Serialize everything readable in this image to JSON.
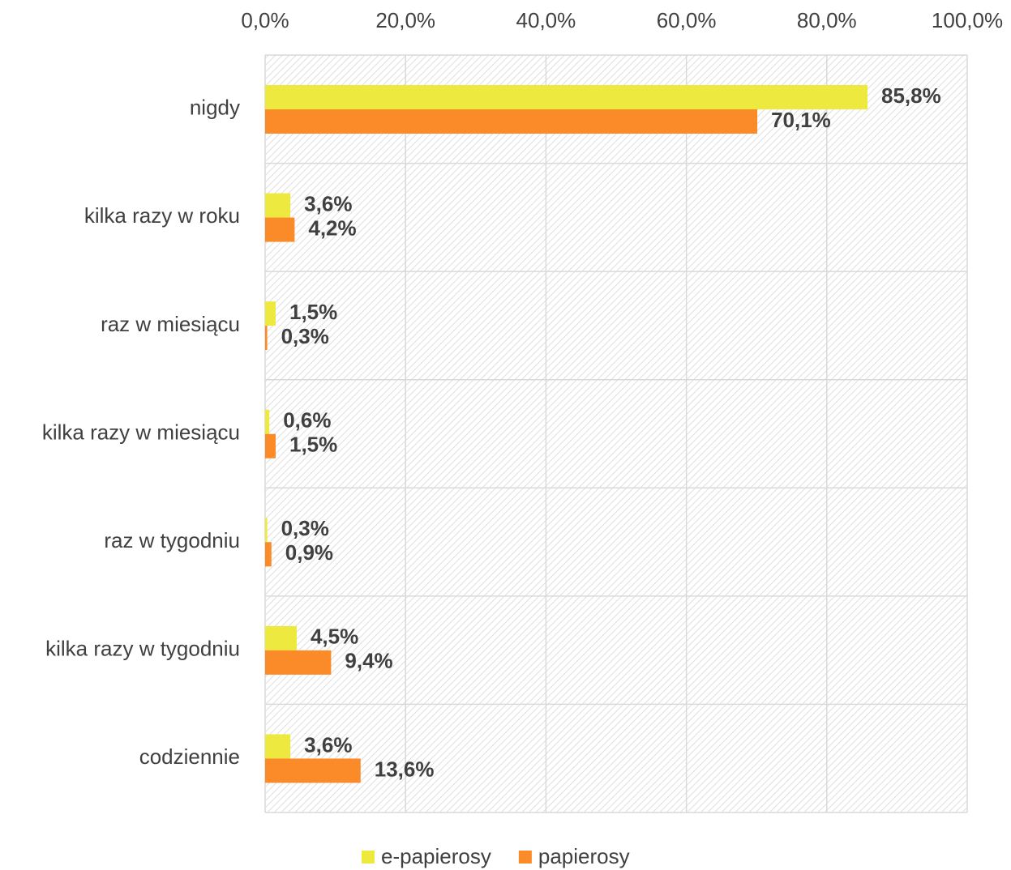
{
  "chart_data": {
    "type": "hbar",
    "categories": [
      "nigdy",
      "kilka razy w roku",
      "raz w miesiącu",
      "kilka razy w miesiącu",
      "raz w tygodniu",
      "kilka razy w tygodniu",
      "codziennie"
    ],
    "series": [
      {
        "name": "e-papierosy",
        "color": "#ede93f",
        "values": [
          85.8,
          3.6,
          1.5,
          0.6,
          0.3,
          4.5,
          3.6
        ],
        "value_labels": [
          "85,8%",
          "3,6%",
          "1,5%",
          "0,6%",
          "0,3%",
          "4,5%",
          "3,6%"
        ]
      },
      {
        "name": "papierosy",
        "color": "#fb8a28",
        "values": [
          70.1,
          4.2,
          0.3,
          1.5,
          0.9,
          9.4,
          13.6
        ],
        "value_labels": [
          "70,1%",
          "4,2%",
          "0,3%",
          "1,5%",
          "0,9%",
          "9,4%",
          "13,6%"
        ]
      }
    ],
    "xlim": [
      0,
      100
    ],
    "xticks": [
      {
        "value": 0,
        "label": "0,0%"
      },
      {
        "value": 20,
        "label": "20,0%"
      },
      {
        "value": 40,
        "label": "40,0%"
      },
      {
        "value": 60,
        "label": "60,0%"
      },
      {
        "value": 80,
        "label": "80,0%"
      },
      {
        "value": 100,
        "label": "100,0%"
      }
    ],
    "grid": true,
    "legend": "bottom"
  }
}
